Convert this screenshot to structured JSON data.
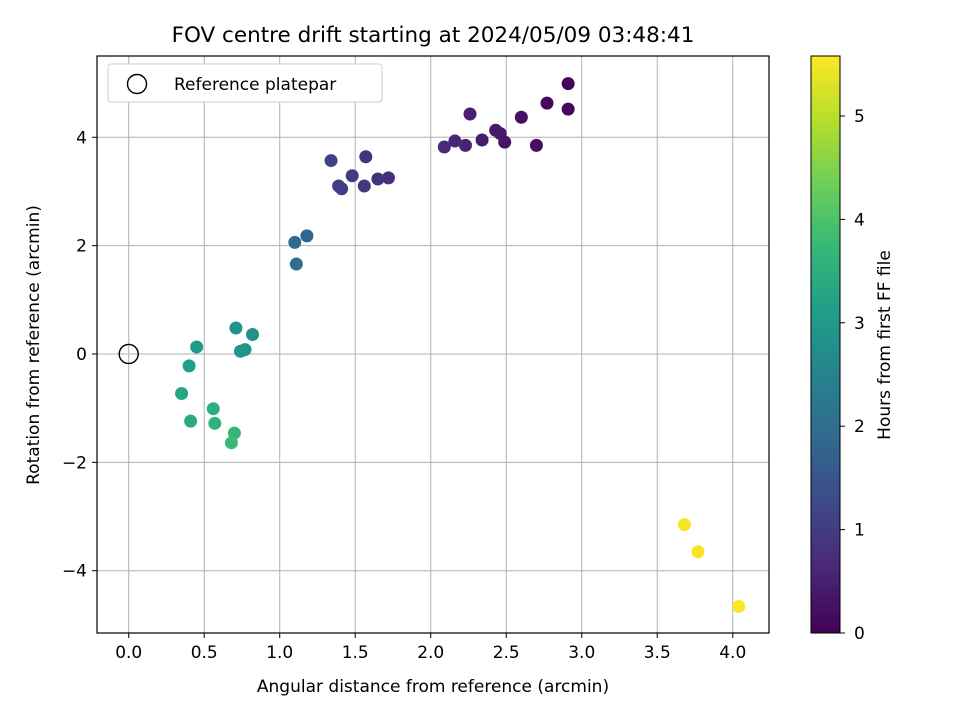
{
  "chart_data": {
    "type": "scatter",
    "title": "FOV centre drift starting at 2024/05/09 03:48:41",
    "xlabel": "Angular distance from reference (arcmin)",
    "ylabel": "Rotation from reference (arcmin)",
    "xlim": [
      -0.21,
      4.24
    ],
    "ylim": [
      -5.15,
      5.5
    ],
    "xticks": [
      0.0,
      0.5,
      1.0,
      1.5,
      2.0,
      2.5,
      3.0,
      3.5,
      4.0
    ],
    "xtick_labels": [
      "0.0",
      "0.5",
      "1.0",
      "1.5",
      "2.0",
      "2.5",
      "3.0",
      "3.5",
      "4.0"
    ],
    "yticks": [
      -4,
      -2,
      0,
      2,
      4
    ],
    "ytick_labels": [
      "−4",
      "−2",
      "0",
      "2",
      "4"
    ],
    "grid": true,
    "legend": {
      "position": "top-left",
      "entries": [
        "Reference platepar"
      ]
    },
    "reference_point": {
      "x": 0.0,
      "y": 0.0,
      "marker": "open-circle",
      "color": "#000000"
    },
    "colorbar": {
      "label": "Hours from first FF file",
      "range": [
        0,
        5.58
      ],
      "ticks": [
        0,
        1,
        2,
        3,
        4,
        5
      ],
      "tick_labels": [
        "0",
        "1",
        "2",
        "3",
        "4",
        "5"
      ],
      "colormap": "viridis",
      "colors": [
        "#440154",
        "#482878",
        "#3e4989",
        "#31688e",
        "#26828e",
        "#1f9e89",
        "#35b779",
        "#6ece58",
        "#b5de2b",
        "#fde725"
      ]
    },
    "points": [
      {
        "x": 2.91,
        "y": 4.99,
        "c": 0.05
      },
      {
        "x": 2.91,
        "y": 4.52,
        "c": 0.1
      },
      {
        "x": 2.77,
        "y": 4.63,
        "c": 0.15
      },
      {
        "x": 2.7,
        "y": 3.85,
        "c": 0.2
      },
      {
        "x": 2.6,
        "y": 4.37,
        "c": 0.25
      },
      {
        "x": 2.49,
        "y": 3.91,
        "c": 0.3
      },
      {
        "x": 2.46,
        "y": 4.07,
        "c": 0.35
      },
      {
        "x": 2.43,
        "y": 4.13,
        "c": 0.4
      },
      {
        "x": 2.34,
        "y": 3.95,
        "c": 0.45
      },
      {
        "x": 2.26,
        "y": 4.43,
        "c": 0.5
      },
      {
        "x": 2.23,
        "y": 3.85,
        "c": 0.55
      },
      {
        "x": 2.16,
        "y": 3.93,
        "c": 0.6
      },
      {
        "x": 2.09,
        "y": 3.82,
        "c": 0.65
      },
      {
        "x": 1.72,
        "y": 3.25,
        "c": 0.75
      },
      {
        "x": 1.65,
        "y": 3.23,
        "c": 0.8
      },
      {
        "x": 1.57,
        "y": 3.64,
        "c": 0.85
      },
      {
        "x": 1.56,
        "y": 3.1,
        "c": 0.9
      },
      {
        "x": 1.48,
        "y": 3.29,
        "c": 0.95
      },
      {
        "x": 1.41,
        "y": 3.05,
        "c": 1.0
      },
      {
        "x": 1.39,
        "y": 3.1,
        "c": 1.05
      },
      {
        "x": 1.34,
        "y": 3.57,
        "c": 1.1
      },
      {
        "x": 1.18,
        "y": 2.18,
        "c": 1.8
      },
      {
        "x": 1.1,
        "y": 2.06,
        "c": 1.9
      },
      {
        "x": 1.11,
        "y": 1.66,
        "c": 2.0
      },
      {
        "x": 0.82,
        "y": 0.36,
        "c": 2.8
      },
      {
        "x": 0.71,
        "y": 0.48,
        "c": 2.85
      },
      {
        "x": 0.77,
        "y": 0.08,
        "c": 2.9
      },
      {
        "x": 0.74,
        "y": 0.05,
        "c": 2.95
      },
      {
        "x": 0.45,
        "y": 0.13,
        "c": 3.0
      },
      {
        "x": 0.4,
        "y": -0.22,
        "c": 3.1
      },
      {
        "x": 0.35,
        "y": -0.73,
        "c": 3.3
      },
      {
        "x": 0.41,
        "y": -1.24,
        "c": 3.4
      },
      {
        "x": 0.56,
        "y": -1.01,
        "c": 3.5
      },
      {
        "x": 0.57,
        "y": -1.28,
        "c": 3.6
      },
      {
        "x": 0.7,
        "y": -1.46,
        "c": 3.7
      },
      {
        "x": 0.68,
        "y": -1.64,
        "c": 3.8
      },
      {
        "x": 3.68,
        "y": -3.15,
        "c": 5.5
      },
      {
        "x": 3.77,
        "y": -3.65,
        "c": 5.52
      },
      {
        "x": 4.04,
        "y": -4.66,
        "c": 5.55
      }
    ]
  }
}
